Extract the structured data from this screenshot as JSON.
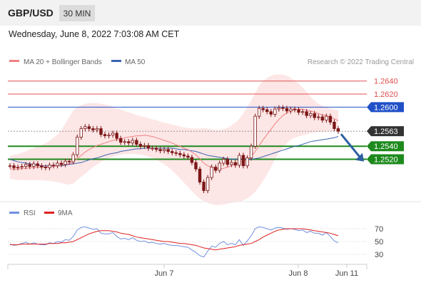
{
  "header": {
    "symbol": "GBP/USD",
    "timeframe": "30 MIN"
  },
  "datetime": "Wednesday, June 8, 2022 7:03:08 AM CET",
  "legend": {
    "ma20": "MA 20 + Bollinger Bands",
    "ma50": "MA 50",
    "rsi": "RSI",
    "ma9": "9MA",
    "credit": "Research © 2022 Trading Central"
  },
  "colors": {
    "ma20": "#f08080",
    "ma50": "#3a64b0",
    "bands": "#fde2e2",
    "candle": "#7d1717",
    "support": "#1e8a1e",
    "resistance": "#e05050",
    "pivot": "#2050c8",
    "current": "#333333",
    "arrow": "#2c5fa0",
    "rsi": "#7090e0",
    "rsi_ma": "#e02020"
  },
  "chart_data": [
    {
      "type": "candlestick",
      "ylim": [
        1.2455,
        1.2655
      ],
      "x_labels": [
        "Jun 7",
        "Jun 8",
        "Jun 11"
      ],
      "levels": [
        {
          "value": 1.264,
          "label": "1.2640",
          "kind": "resistance"
        },
        {
          "value": 1.262,
          "label": "1.2620",
          "kind": "resistance"
        },
        {
          "value": 1.26,
          "label": "1.2600",
          "kind": "pivot"
        },
        {
          "value": 1.2563,
          "label": "1.2563",
          "kind": "current"
        },
        {
          "value": 1.254,
          "label": "1.2540",
          "kind": "support"
        },
        {
          "value": 1.252,
          "label": "1.2520",
          "kind": "support"
        }
      ],
      "close": [
        1.251,
        1.2507,
        1.2508,
        1.2509,
        1.2512,
        1.2509,
        1.2513,
        1.251,
        1.2508,
        1.2507,
        1.2511,
        1.251,
        1.2514,
        1.2512,
        1.2517,
        1.2516,
        1.2527,
        1.2554,
        1.2567,
        1.257,
        1.2567,
        1.2565,
        1.2567,
        1.2558,
        1.2556,
        1.2557,
        1.256,
        1.2552,
        1.2546,
        1.2547,
        1.2545,
        1.2549,
        1.2543,
        1.254,
        1.2541,
        1.2537,
        1.2537,
        1.2535,
        1.2533,
        1.2535,
        1.2532,
        1.253,
        1.2529,
        1.2527,
        1.2525,
        1.2523,
        1.2515,
        1.2505,
        1.2485,
        1.2472,
        1.2492,
        1.2508,
        1.2503,
        1.2514,
        1.252,
        1.2512,
        1.2515,
        1.2511,
        1.2526,
        1.251,
        1.2522,
        1.254,
        1.2586,
        1.2598,
        1.2596,
        1.2593,
        1.2589,
        1.2597,
        1.2599,
        1.2598,
        1.2594,
        1.2597,
        1.2596,
        1.2592,
        1.2593,
        1.2587,
        1.259,
        1.2584,
        1.2585,
        1.258,
        1.2586,
        1.2577,
        1.2567,
        1.2563
      ],
      "series": [
        {
          "name": "MA 20",
          "values": [
            1.2505,
            1.2505,
            1.2505,
            1.2506,
            1.2506,
            1.2507,
            1.2507,
            1.2508,
            1.2508,
            1.2508,
            1.2509,
            1.2509,
            1.251,
            1.2511,
            1.2512,
            1.2513,
            1.2516,
            1.2521,
            1.2526,
            1.2531,
            1.2535,
            1.2538,
            1.2541,
            1.2543,
            1.2545,
            1.2547,
            1.2549,
            1.255,
            1.2551,
            1.2553,
            1.2554,
            1.2555,
            1.2556,
            1.2556,
            1.2557,
            1.2556,
            1.2555,
            1.2553,
            1.2551,
            1.2549,
            1.2547,
            1.2545,
            1.2542,
            1.254,
            1.2537,
            1.2535,
            1.2531,
            1.2527,
            1.2521,
            1.2514,
            1.251,
            1.2508,
            1.2506,
            1.2505,
            1.2506,
            1.2508,
            1.251,
            1.2512,
            1.2515,
            1.2517,
            1.252,
            1.2524,
            1.2532,
            1.2541,
            1.255,
            1.2558,
            1.2566,
            1.2574,
            1.2581,
            1.2587,
            1.2591,
            1.2594,
            1.2596,
            1.2597,
            1.2597,
            1.2595,
            1.2594,
            1.2592,
            1.259,
            1.2588,
            1.2587,
            1.2585,
            1.2582,
            1.2579
          ]
        },
        {
          "name": "MA 50",
          "values": [
            1.252,
            1.2518,
            1.2516,
            1.2515,
            1.2514,
            1.2513,
            1.2512,
            1.2511,
            1.251,
            1.251,
            1.251,
            1.251,
            1.251,
            1.251,
            1.2511,
            1.2512,
            1.2513,
            1.2514,
            1.2515,
            1.2517,
            1.2519,
            1.2521,
            1.2522,
            1.2524,
            1.2526,
            1.2528,
            1.2529,
            1.253,
            1.2532,
            1.2533,
            1.2534,
            1.2535,
            1.2536,
            1.2536,
            1.2537,
            1.2537,
            1.2537,
            1.2537,
            1.2537,
            1.2537,
            1.2537,
            1.2537,
            1.2536,
            1.2535,
            1.2535,
            1.2534,
            1.2533,
            1.2532,
            1.253,
            1.2528,
            1.2526,
            1.2525,
            1.2524,
            1.2523,
            1.2522,
            1.2521,
            1.252,
            1.252,
            1.252,
            1.252,
            1.252,
            1.252,
            1.2521,
            1.2522,
            1.2524,
            1.2526,
            1.2528,
            1.253,
            1.2532,
            1.2534,
            1.2536,
            1.2538,
            1.254,
            1.2541,
            1.2543,
            1.2545,
            1.2547,
            1.2548,
            1.2549,
            1.255,
            1.2551,
            1.2552,
            1.2553,
            1.2555
          ]
        },
        {
          "name": "Bollinger Upper",
          "values": [
            1.2525,
            1.2527,
            1.2528,
            1.253,
            1.2532,
            1.2535,
            1.2537,
            1.254,
            1.2542,
            1.2545,
            1.2548,
            1.2553,
            1.2558,
            1.2565,
            1.2575,
            1.2585,
            1.2595,
            1.26,
            1.2603,
            1.2605,
            1.2606,
            1.2606,
            1.2606,
            1.2605,
            1.2604,
            1.2603,
            1.26,
            1.2598,
            1.2596,
            1.2594,
            1.2592,
            1.259,
            1.2588,
            1.2586,
            1.2585,
            1.2583,
            1.2581,
            1.258,
            1.2578,
            1.2576,
            1.2575,
            1.2573,
            1.2572,
            1.257,
            1.2569,
            1.2568,
            1.2567,
            1.2567,
            1.2567,
            1.2568,
            1.2567,
            1.2566,
            1.2565,
            1.2565,
            1.2566,
            1.2568,
            1.2572,
            1.2576,
            1.2582,
            1.259,
            1.26,
            1.261,
            1.2622,
            1.2633,
            1.264,
            1.2645,
            1.2648,
            1.265,
            1.265,
            1.265,
            1.2648,
            1.2645,
            1.2641,
            1.2636,
            1.263,
            1.2623,
            1.2616,
            1.261,
            1.2605,
            1.2602,
            1.26,
            1.2598,
            1.2596,
            1.2595
          ]
        },
        {
          "name": "Bollinger Lower",
          "values": [
            1.249,
            1.2489,
            1.2488,
            1.2488,
            1.2488,
            1.2488,
            1.2488,
            1.2488,
            1.2488,
            1.2487,
            1.2487,
            1.2486,
            1.2485,
            1.2484,
            1.2482,
            1.2481,
            1.2483,
            1.2488,
            1.2493,
            1.2498,
            1.2503,
            1.2508,
            1.2512,
            1.2516,
            1.2519,
            1.2522,
            1.2524,
            1.2526,
            1.2527,
            1.2528,
            1.2528,
            1.2528,
            1.2528,
            1.2527,
            1.2526,
            1.2524,
            1.2522,
            1.2519,
            1.2516,
            1.2512,
            1.2508,
            1.2503,
            1.2497,
            1.2491,
            1.2484,
            1.2478,
            1.2471,
            1.2465,
            1.246,
            1.2456,
            1.2453,
            1.2451,
            1.245,
            1.245,
            1.2451,
            1.2452,
            1.2453,
            1.2454,
            1.2455,
            1.2457,
            1.246,
            1.2464,
            1.247,
            1.2478,
            1.2487,
            1.2497,
            1.2508,
            1.252,
            1.253,
            1.2538,
            1.2545,
            1.255,
            1.2553,
            1.2555,
            1.2557,
            1.2558,
            1.256,
            1.2561,
            1.2562,
            1.2562,
            1.2563,
            1.2563,
            1.2563,
            1.2563
          ]
        }
      ]
    },
    {
      "type": "line",
      "name": "RSI",
      "ylim": [
        20,
        80
      ],
      "yticks": [
        30,
        50,
        70
      ],
      "x_labels": [
        "Jun 7",
        "Jun 8",
        "Jun 11"
      ],
      "series": [
        {
          "name": "RSI",
          "values": [
            46,
            44,
            45,
            47,
            49,
            46,
            48,
            46,
            45,
            45,
            48,
            47,
            50,
            49,
            53,
            52,
            58,
            68,
            72,
            73,
            71,
            69,
            70,
            63,
            62,
            62,
            64,
            58,
            54,
            55,
            53,
            56,
            52,
            50,
            51,
            48,
            49,
            47,
            46,
            47,
            45,
            44,
            44,
            43,
            42,
            41,
            37,
            33,
            28,
            26,
            35,
            43,
            41,
            47,
            50,
            45,
            47,
            45,
            53,
            44,
            51,
            59,
            70,
            73,
            72,
            70,
            68,
            71,
            72,
            71,
            69,
            70,
            69,
            67,
            68,
            64,
            66,
            63,
            63,
            60,
            64,
            58,
            51,
            48
          ]
        },
        {
          "name": "9MA",
          "values": [
            45,
            45,
            45,
            46,
            46,
            46,
            46,
            46,
            46,
            46,
            47,
            47,
            47,
            48,
            48,
            49,
            50,
            53,
            56,
            59,
            62,
            64,
            66,
            67,
            67,
            67,
            66,
            65,
            63,
            62,
            61,
            59,
            57,
            56,
            55,
            54,
            53,
            52,
            51,
            50,
            50,
            49,
            48,
            47,
            47,
            46,
            45,
            44,
            42,
            40,
            39,
            38,
            37,
            38,
            39,
            40,
            41,
            42,
            44,
            45,
            46,
            47,
            50,
            53,
            57,
            60,
            63,
            66,
            68,
            69,
            70,
            70,
            70,
            70,
            70,
            69,
            68,
            67,
            66,
            65,
            64,
            63,
            61,
            59
          ]
        }
      ]
    }
  ]
}
